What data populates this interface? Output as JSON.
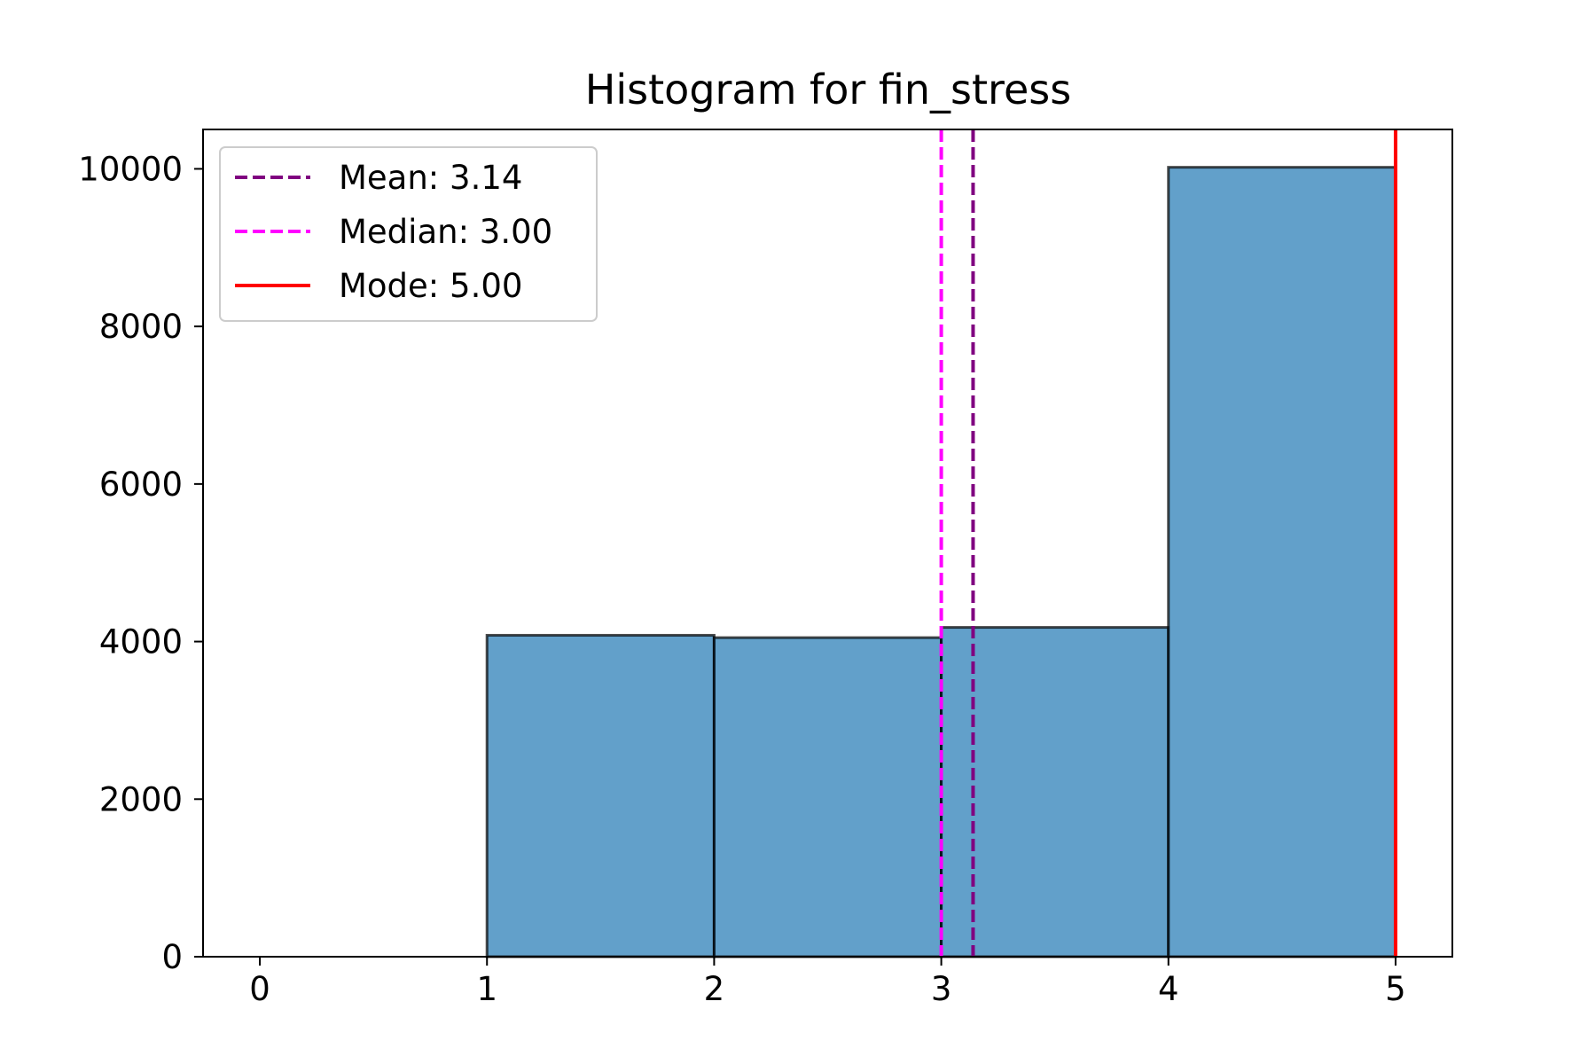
{
  "chart_data": {
    "type": "bar",
    "title": "Histogram for fin_stress",
    "xlabel": "",
    "ylabel": "",
    "xlim": [
      -0.25,
      5.25
    ],
    "ylim": [
      0,
      10500
    ],
    "x_ticks": [
      0,
      1,
      2,
      3,
      4,
      5
    ],
    "x_tick_labels": [
      "0",
      "1",
      "2",
      "3",
      "4",
      "5"
    ],
    "y_ticks": [
      0,
      2000,
      4000,
      6000,
      8000,
      10000
    ],
    "y_tick_labels": [
      "0",
      "2000",
      "4000",
      "6000",
      "8000",
      "10000"
    ],
    "bins": [
      {
        "start": 0,
        "end": 1,
        "count": 0
      },
      {
        "start": 1,
        "end": 2,
        "count": 4080
      },
      {
        "start": 2,
        "end": 3,
        "count": 4050
      },
      {
        "start": 3,
        "end": 4,
        "count": 4180
      },
      {
        "start": 4,
        "end": 5,
        "count": 10020
      }
    ],
    "bar_color": "#1f77b4",
    "bar_edge_color": "#000000",
    "grid": false,
    "legend_position": "top-left",
    "reference_lines": [
      {
        "label": "Mean: 3.14",
        "value": 3.14,
        "style": "dashed",
        "color": "#800080"
      },
      {
        "label": "Median: 3.00",
        "value": 3.0,
        "style": "dashed",
        "color": "#ff00ff"
      },
      {
        "label": "Mode: 5.00",
        "value": 5.0,
        "style": "solid",
        "color": "#ff0000"
      }
    ]
  }
}
